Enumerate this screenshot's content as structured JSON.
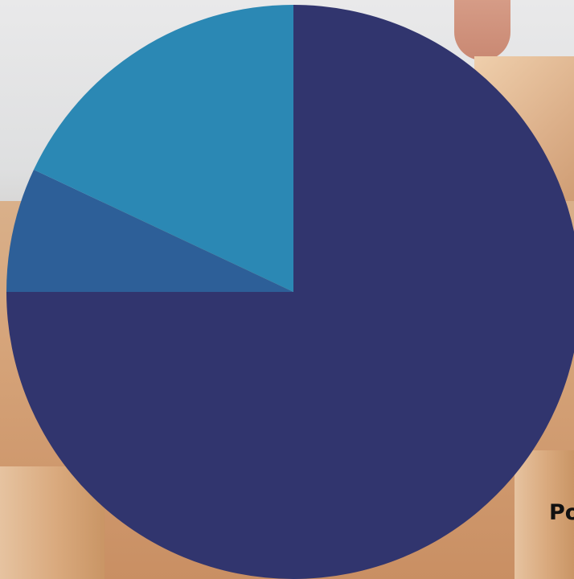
{
  "chart_data": {
    "type": "pie",
    "slices": [
      {
        "value": 75.0,
        "color": "#31356e"
      },
      {
        "value": 7.0,
        "color": "#2d5f98"
      },
      {
        "value": 18.0,
        "color": "#2b88b4"
      }
    ],
    "start_angle": "top",
    "direction": "clockwise",
    "legend": "none"
  },
  "footer": {
    "label": "Po"
  }
}
